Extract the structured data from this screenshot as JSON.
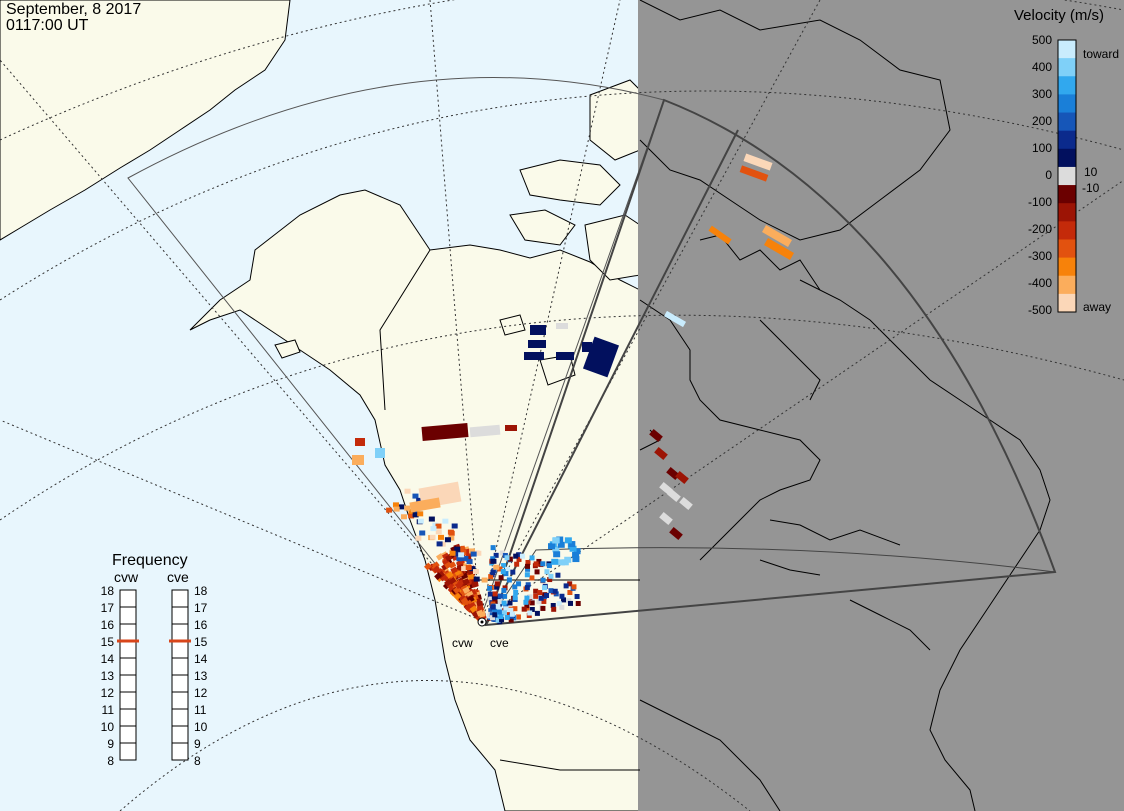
{
  "header": {
    "date": "September, 8 2017",
    "time": "0117:00 UT"
  },
  "stations": [
    {
      "id": "cvw"
    },
    {
      "id": "cve"
    }
  ],
  "velocity_legend": {
    "title": "Velocity (m/s)",
    "ticks": [
      "500",
      "400",
      "300",
      "200",
      "100",
      "0",
      "-100",
      "-200",
      "-300",
      "-400",
      "-500"
    ],
    "inner_labels": [
      "10",
      "-10"
    ],
    "toward_label": "toward",
    "away_label": "away",
    "colors": [
      "#c9ecfd",
      "#7fd0f8",
      "#31a8ee",
      "#1a7fd8",
      "#1656b8",
      "#0b2a8c",
      "#02105e",
      "#dcdcdc",
      "#6b0000",
      "#9c1405",
      "#c42a0a",
      "#e2520f",
      "#f7820a",
      "#fbad5c",
      "#fbd7b8"
    ]
  },
  "frequency_panel": {
    "title": "Frequency",
    "radars": [
      {
        "name": "cvw",
        "value_mhz": 15
      },
      {
        "name": "cve",
        "value_mhz": 15
      }
    ],
    "ticks": [
      "18",
      "17",
      "16",
      "15",
      "14",
      "13",
      "12",
      "11",
      "10",
      "9",
      "8"
    ],
    "marker_color": "#d8451a"
  },
  "colors": {
    "ocean": "#e8f6fd",
    "land": "#fafaea",
    "night": "#959595"
  }
}
